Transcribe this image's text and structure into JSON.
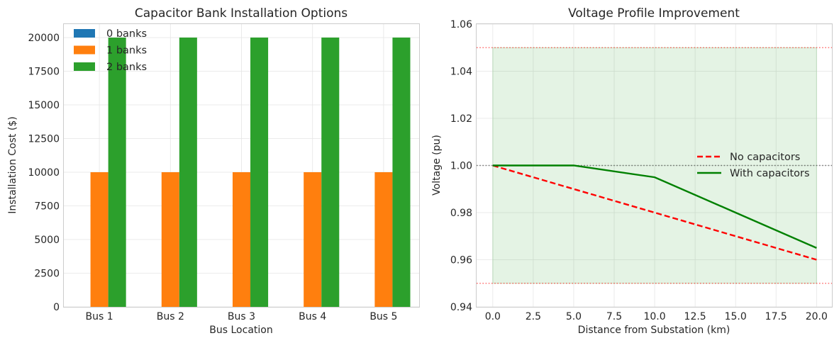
{
  "chart_data": [
    {
      "type": "bar",
      "title": "Capacitor Bank Installation Options",
      "xlabel": "Bus Location",
      "ylabel": "Installation Cost ($)",
      "categories": [
        "Bus 1",
        "Bus 2",
        "Bus 3",
        "Bus 4",
        "Bus 5"
      ],
      "series": [
        {
          "name": "0 banks",
          "values": [
            0,
            0,
            0,
            0,
            0
          ],
          "color": "#1f77b4"
        },
        {
          "name": "1 banks",
          "values": [
            10000,
            10000,
            10000,
            10000,
            10000
          ],
          "color": "#ff7f0e"
        },
        {
          "name": "2 banks",
          "values": [
            20000,
            20000,
            20000,
            20000,
            20000
          ],
          "color": "#2ca02c"
        }
      ],
      "ylim": [
        0,
        21000
      ],
      "yticks": [
        0,
        2500,
        5000,
        7500,
        10000,
        12500,
        15000,
        17500,
        20000
      ],
      "grid": true,
      "legend_position": "top-left"
    },
    {
      "type": "line",
      "title": "Voltage Profile Improvement",
      "xlabel": "Distance from Substation (km)",
      "ylabel": "Voltage (pu)",
      "xlim": [
        -1,
        20.95
      ],
      "ylim": [
        0.94,
        1.06
      ],
      "xticks": [
        0.0,
        2.5,
        5.0,
        7.5,
        10.0,
        12.5,
        15.0,
        17.5,
        20.0
      ],
      "yticks": [
        0.94,
        0.96,
        0.98,
        1.0,
        1.02,
        1.04,
        1.06
      ],
      "series": [
        {
          "name": "No capacitors",
          "x": [
            0,
            5,
            10,
            15,
            20
          ],
          "y": [
            1.0,
            0.99,
            0.98,
            0.97,
            0.96
          ],
          "color": "#ff0000",
          "style": "dashed"
        },
        {
          "name": "With capacitors",
          "x": [
            0,
            5,
            10,
            15,
            20
          ],
          "y": [
            1.0,
            1.0,
            0.995,
            0.98,
            0.965
          ],
          "color": "#008000",
          "style": "solid"
        }
      ],
      "reference_lines": [
        {
          "y": 1.05,
          "color": "#ff0000",
          "style": "dotted"
        },
        {
          "y": 0.95,
          "color": "#ff0000",
          "style": "dotted"
        },
        {
          "y": 1.0,
          "color": "#000000",
          "style": "dotted"
        }
      ],
      "shaded_band": {
        "x": [
          0,
          20
        ],
        "y": [
          0.95,
          1.05
        ],
        "color": "#2ca02c"
      },
      "grid": true,
      "legend_position": "center-right"
    }
  ]
}
